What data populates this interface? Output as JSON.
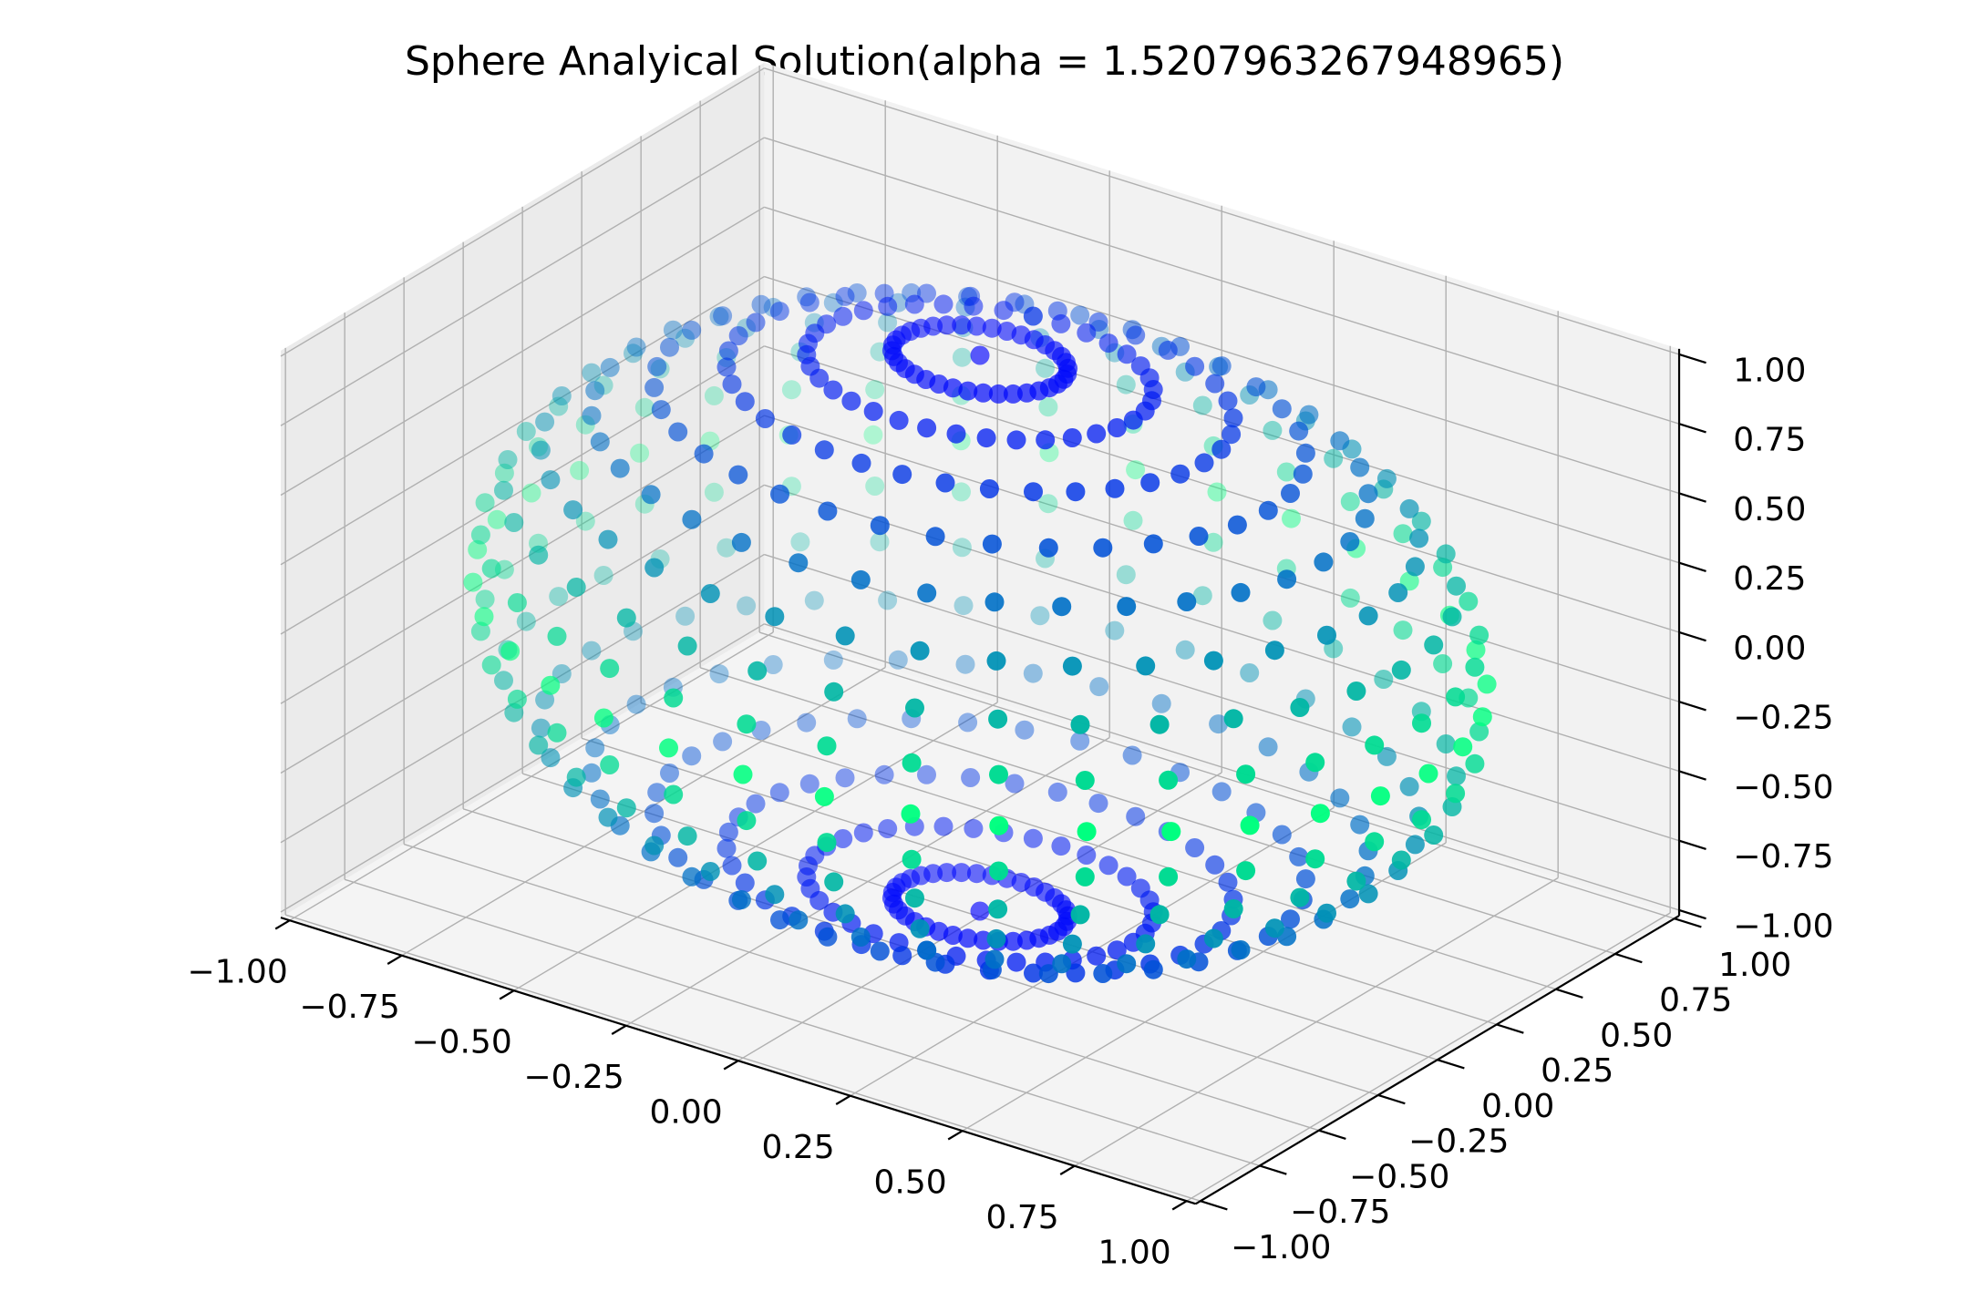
{
  "chart_data": {
    "type": "scatter",
    "projection": "3d",
    "title": "Sphere Analyical Solution(alpha = 1.5207963267948965)",
    "xlabel": "",
    "ylabel": "",
    "zlabel": "",
    "xlim": [
      -1.0,
      1.0
    ],
    "ylim": [
      -1.0,
      1.0
    ],
    "zlim": [
      -1.0,
      1.0
    ],
    "x_ticks": [
      -1.0,
      -0.75,
      -0.5,
      -0.25,
      0.0,
      0.25,
      0.5,
      0.75,
      1.0
    ],
    "y_ticks": [
      -1.0,
      -0.75,
      -0.5,
      -0.25,
      0.0,
      0.25,
      0.5,
      0.75,
      1.0
    ],
    "z_ticks": [
      -1.0,
      -0.75,
      -0.5,
      -0.25,
      0.0,
      0.25,
      0.5,
      0.75,
      1.0
    ],
    "x_tick_labels": [
      "−1.00",
      "−0.75",
      "−0.50",
      "−0.25",
      "0.00",
      "0.25",
      "0.50",
      "0.75",
      "1.00"
    ],
    "y_tick_labels": [
      "−1.00",
      "−0.75",
      "−0.50",
      "−0.25",
      "0.00",
      "0.25",
      "0.50",
      "0.75",
      "1.00"
    ],
    "z_tick_labels": [
      "−1.00",
      "−0.75",
      "−0.50",
      "−0.25",
      "0.00",
      "0.25",
      "0.50",
      "0.75",
      "1.00"
    ],
    "grid": true,
    "surface": "sphere",
    "radius": 1.0,
    "latitude_rings": 18,
    "points_per_ring": 36,
    "colormap": [
      "#0000ff",
      "#00ff80"
    ],
    "color_by": "absolute latitude (poles blue, equator green)",
    "depth_shading": true
  },
  "colors": {
    "pane_left": "#ebebeb",
    "pane_right": "#f2f2f2",
    "pane_floor": "#f4f4f4",
    "grid": "#b0b0b0",
    "axis": "#000000"
  }
}
